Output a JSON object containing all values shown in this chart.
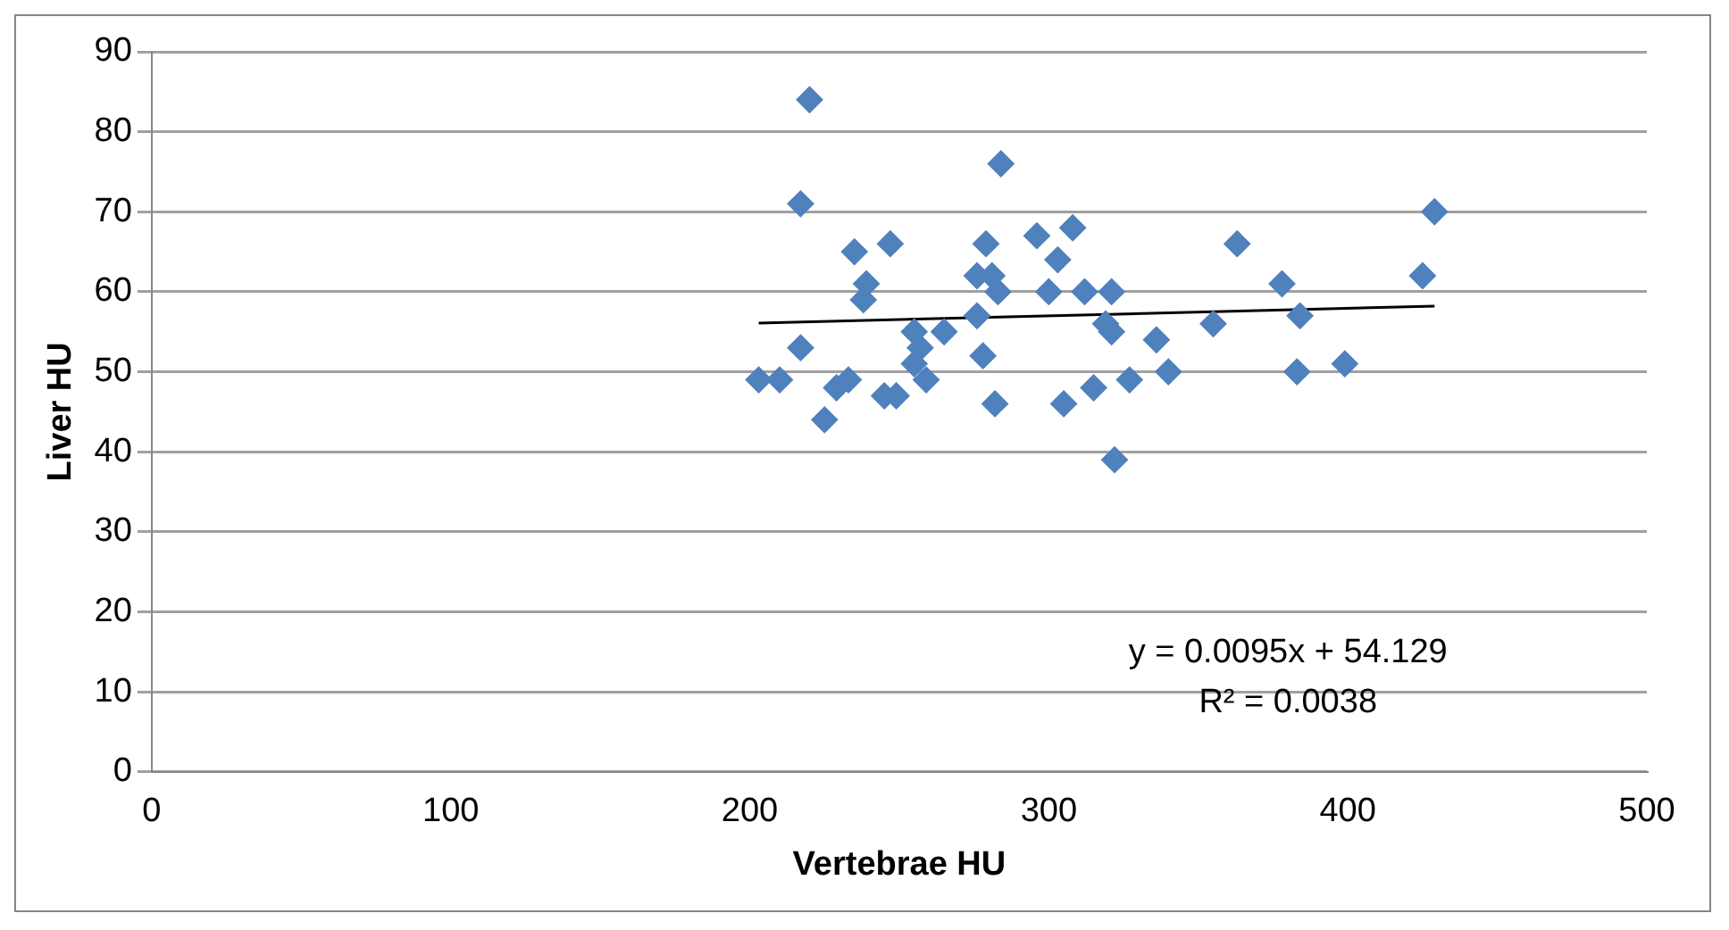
{
  "chart_data": {
    "type": "scatter",
    "xlabel": "Vertebrae HU",
    "ylabel": "Liver HU",
    "xlim": [
      0,
      500
    ],
    "xticks": [
      0,
      100,
      200,
      300,
      400,
      500
    ],
    "ylim": [
      0,
      90
    ],
    "yticks": [
      0,
      10,
      20,
      30,
      40,
      50,
      60,
      70,
      80,
      90
    ],
    "grid": "y",
    "legend": false,
    "series": [
      {
        "color": "#4f81bd",
        "marker": "diamond",
        "x": [
          203,
          210,
          217,
          217,
          220,
          225,
          229,
          233,
          235,
          238,
          239,
          245,
          247,
          249,
          255,
          255,
          257,
          259,
          265,
          276,
          276,
          278,
          279,
          281,
          282,
          283,
          284,
          296,
          300,
          303,
          305,
          308,
          312,
          315,
          319,
          321,
          321,
          322,
          327,
          336,
          340,
          355,
          363,
          378,
          383,
          384,
          399,
          425,
          429
        ],
        "values": [
          49,
          49,
          53,
          71,
          84,
          44,
          48,
          49,
          65,
          59,
          61,
          47,
          66,
          47,
          51,
          55,
          53,
          49,
          55,
          57,
          62,
          52,
          66,
          62,
          46,
          60,
          76,
          67,
          60,
          64,
          46,
          68,
          60,
          48,
          56,
          55,
          60,
          39,
          49,
          54,
          50,
          56,
          66,
          61,
          50,
          57,
          51,
          62,
          70
        ]
      },
      {
        "type": "line",
        "color": "#000000",
        "marker": "none",
        "x": [
          203,
          429
        ],
        "values": [
          56.1,
          58.2
        ]
      }
    ],
    "annotations": [
      "y = 0.0095x + 54.129",
      "R² = 0.0038"
    ]
  }
}
